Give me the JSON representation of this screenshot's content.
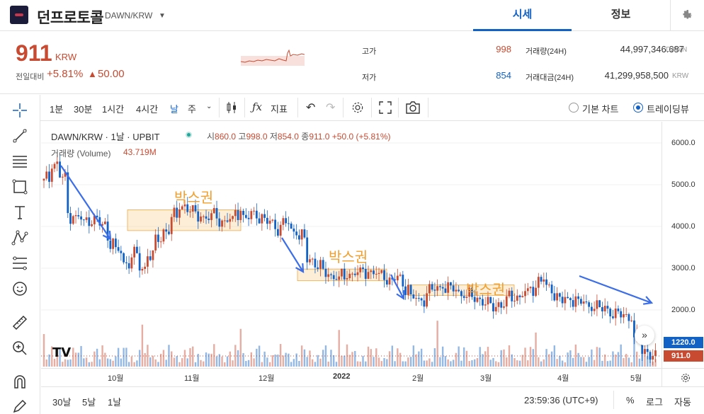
{
  "header": {
    "coin_name": "던프로토콜",
    "pair": "DAWN/KRW",
    "tabs": [
      "시세",
      "정보"
    ]
  },
  "summary": {
    "price": "911",
    "price_unit": "KRW",
    "change_label": "전일대비",
    "change_rate": "+5.81%",
    "change_arrow": "▲",
    "change_value": "50.00",
    "high_label": "고가",
    "high_value": "998",
    "low_label": "저가",
    "low_value": "854",
    "volume_label": "거래량(24H)",
    "volume_value": "44,997,346.687",
    "volume_unit": "DAWN",
    "amount_label": "거래대금(24H)",
    "amount_value": "41,299,958,500",
    "amount_unit": "KRW"
  },
  "toolbar": {
    "intervals": [
      "1분",
      "30분",
      "1시간",
      "4시간",
      "날",
      "주"
    ],
    "active_interval": "날",
    "indicator_label": "지표",
    "chart_modes": [
      "기본 차트",
      "트레이딩뷰"
    ],
    "active_mode": "트레이딩뷰"
  },
  "legend": {
    "symbol": "DAWN/KRW · 1날 · UPBIT",
    "open_label": "시",
    "open": "860.0",
    "high_label": "고",
    "high": "998.0",
    "low_label": "저",
    "low": "854.0",
    "close_label": "종",
    "close": "911.0",
    "change": "+50.0 (+5.81%)",
    "volume_label": "거래량 (Volume)",
    "volume_value": "43.719M"
  },
  "annotations": {
    "box_label": "박스권"
  },
  "colors": {
    "up": "#c84a31",
    "down": "#1261c4",
    "arrow": "#3b6ee8",
    "box": "#f0a030"
  },
  "chart_data": {
    "type": "candlestick",
    "y_axis": {
      "ticks": [
        "6000.0",
        "5000.0",
        "4000.0",
        "3000.0",
        "2000.0"
      ],
      "range": [
        800,
        6500
      ]
    },
    "x_axis": {
      "ticks": [
        "10월",
        "11월",
        "12월",
        "2022",
        "2월",
        "3월",
        "4월",
        "5월"
      ]
    },
    "price_badges": [
      {
        "value": "1220.0",
        "color": "#1261c4"
      },
      {
        "value": "911.0",
        "color": "#c84a31"
      }
    ],
    "close_series": [
      5100,
      5500,
      5200,
      4300,
      4200,
      4100,
      4150,
      4050,
      3700,
      3400,
      3100,
      3300,
      3000,
      3350,
      3700,
      3900,
      4200,
      4500,
      4400,
      4300,
      4200,
      4250,
      4100,
      4150,
      4400,
      4200,
      4300,
      4150,
      4100,
      4000,
      4100,
      3900,
      3700,
      3200,
      3100,
      2900,
      2800,
      2750,
      2850,
      2900,
      2950,
      2900,
      2800,
      2700,
      2750,
      2600,
      2300,
      2200,
      2450,
      2500,
      2600,
      2500,
      2400,
      2300,
      2250,
      2200,
      2100,
      2150,
      2250,
      2300,
      2400,
      2550,
      2750,
      2500,
      2300,
      2200,
      2300,
      2200,
      2100,
      2050,
      2000,
      1950,
      1900,
      1850,
      1300,
      1000,
      911
    ]
  },
  "bottom": {
    "ranges": [
      "30날",
      "5날",
      "1날"
    ],
    "time": "23:59:36 (UTC+9)",
    "percent": "%",
    "log": "로그",
    "auto": "자동"
  }
}
